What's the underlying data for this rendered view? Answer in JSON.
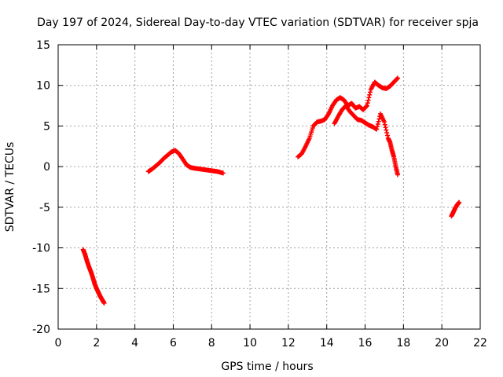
{
  "chart_data": {
    "type": "scatter",
    "title": "Day 197 of 2024, Sidereal Day-to-day VTEC variation (SDTVAR) for receiver spja",
    "xlabel": "GPS time / hours",
    "ylabel": "SDTVAR / TECUs",
    "xlim": [
      0,
      22
    ],
    "ylim": [
      -20,
      15
    ],
    "xticks": [
      "0",
      "2",
      "4",
      "6",
      "8",
      "10",
      "12",
      "14",
      "16",
      "18",
      "20",
      "22"
    ],
    "yticks": [
      "-20",
      "-15",
      "-10",
      "-5",
      "0",
      "5",
      "10",
      "15"
    ],
    "grid": true,
    "marker": "+",
    "color": "#ff0000",
    "segments": [
      {
        "x": [
          1.3,
          1.4,
          1.5,
          1.6,
          1.7,
          1.8,
          1.9,
          2.0,
          2.1,
          2.2,
          2.3,
          2.4
        ],
        "y": [
          -10.2,
          -10.8,
          -11.6,
          -12.3,
          -12.9,
          -13.6,
          -14.4,
          -15.0,
          -15.5,
          -16.0,
          -16.4,
          -16.8
        ]
      },
      {
        "x": [
          4.7,
          4.9,
          5.1,
          5.3,
          5.5,
          5.7,
          5.9,
          6.1,
          6.3,
          6.5,
          6.7,
          6.9,
          7.1,
          7.4,
          7.7,
          8.0,
          8.3,
          8.6
        ],
        "y": [
          -0.6,
          -0.3,
          0.1,
          0.5,
          1.0,
          1.4,
          1.8,
          2.0,
          1.6,
          0.9,
          0.2,
          -0.1,
          -0.2,
          -0.3,
          -0.4,
          -0.5,
          -0.6,
          -0.8
        ]
      },
      {
        "x": [
          12.5,
          12.7,
          12.9,
          13.1,
          13.3,
          13.5,
          13.7,
          13.9,
          14.1,
          14.3,
          14.5,
          14.7,
          14.9,
          15.1,
          15.3,
          15.5,
          15.7,
          15.9,
          16.1,
          16.3,
          16.5,
          16.7,
          16.9,
          17.1,
          17.3,
          17.5,
          17.7
        ],
        "y": [
          1.2,
          1.6,
          2.5,
          3.5,
          5.0,
          5.5,
          5.6,
          5.8,
          6.5,
          7.5,
          8.2,
          8.5,
          8.2,
          7.5,
          7.8,
          7.2,
          7.4,
          7.0,
          7.5,
          9.5,
          10.4,
          10.0,
          9.7,
          9.6,
          9.9,
          10.4,
          10.9
        ]
      },
      {
        "x": [
          14.4,
          14.6,
          14.8,
          15.0,
          15.2,
          15.4,
          15.6,
          15.8,
          16.0,
          16.2,
          16.4,
          16.6,
          16.8,
          17.0,
          17.2,
          17.3,
          17.4,
          17.5,
          17.6,
          17.7
        ],
        "y": [
          5.3,
          6.2,
          7.0,
          7.5,
          6.8,
          6.3,
          5.8,
          5.7,
          5.4,
          5.1,
          4.9,
          4.6,
          6.5,
          5.5,
          3.5,
          3.0,
          2.0,
          1.2,
          0.0,
          -1.0
        ]
      },
      {
        "x": [
          20.5,
          20.6,
          20.7,
          20.8,
          20.9
        ],
        "y": [
          -6.1,
          -5.6,
          -5.1,
          -4.7,
          -4.4
        ]
      }
    ]
  }
}
